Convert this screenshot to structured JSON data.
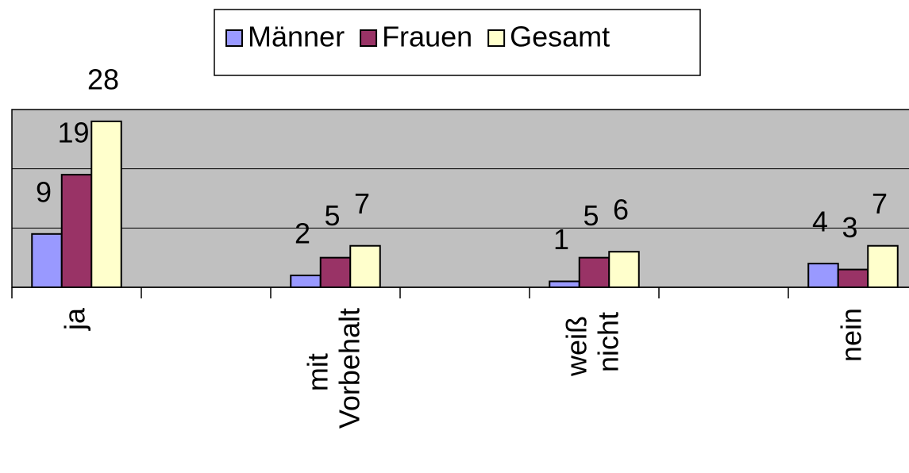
{
  "chart_data": {
    "type": "bar",
    "categories": [
      "ja",
      null,
      "mit Vorbehalt",
      null,
      "weiß nicht",
      null,
      "nein"
    ],
    "series": [
      {
        "name": "Männer",
        "color": "#9999ff",
        "values": [
          9,
          null,
          2,
          null,
          1,
          null,
          4
        ]
      },
      {
        "name": "Frauen",
        "color": "#993366",
        "values": [
          19,
          null,
          5,
          null,
          5,
          null,
          3
        ]
      },
      {
        "name": "Gesamt",
        "color": "#ffffcc",
        "values": [
          28,
          null,
          7,
          null,
          6,
          null,
          7
        ]
      }
    ],
    "ylim": [
      0,
      30
    ],
    "yticks": [
      0,
      10,
      20,
      30
    ],
    "grid": true,
    "legend": "top",
    "plot_background": "#c0c0c0"
  }
}
